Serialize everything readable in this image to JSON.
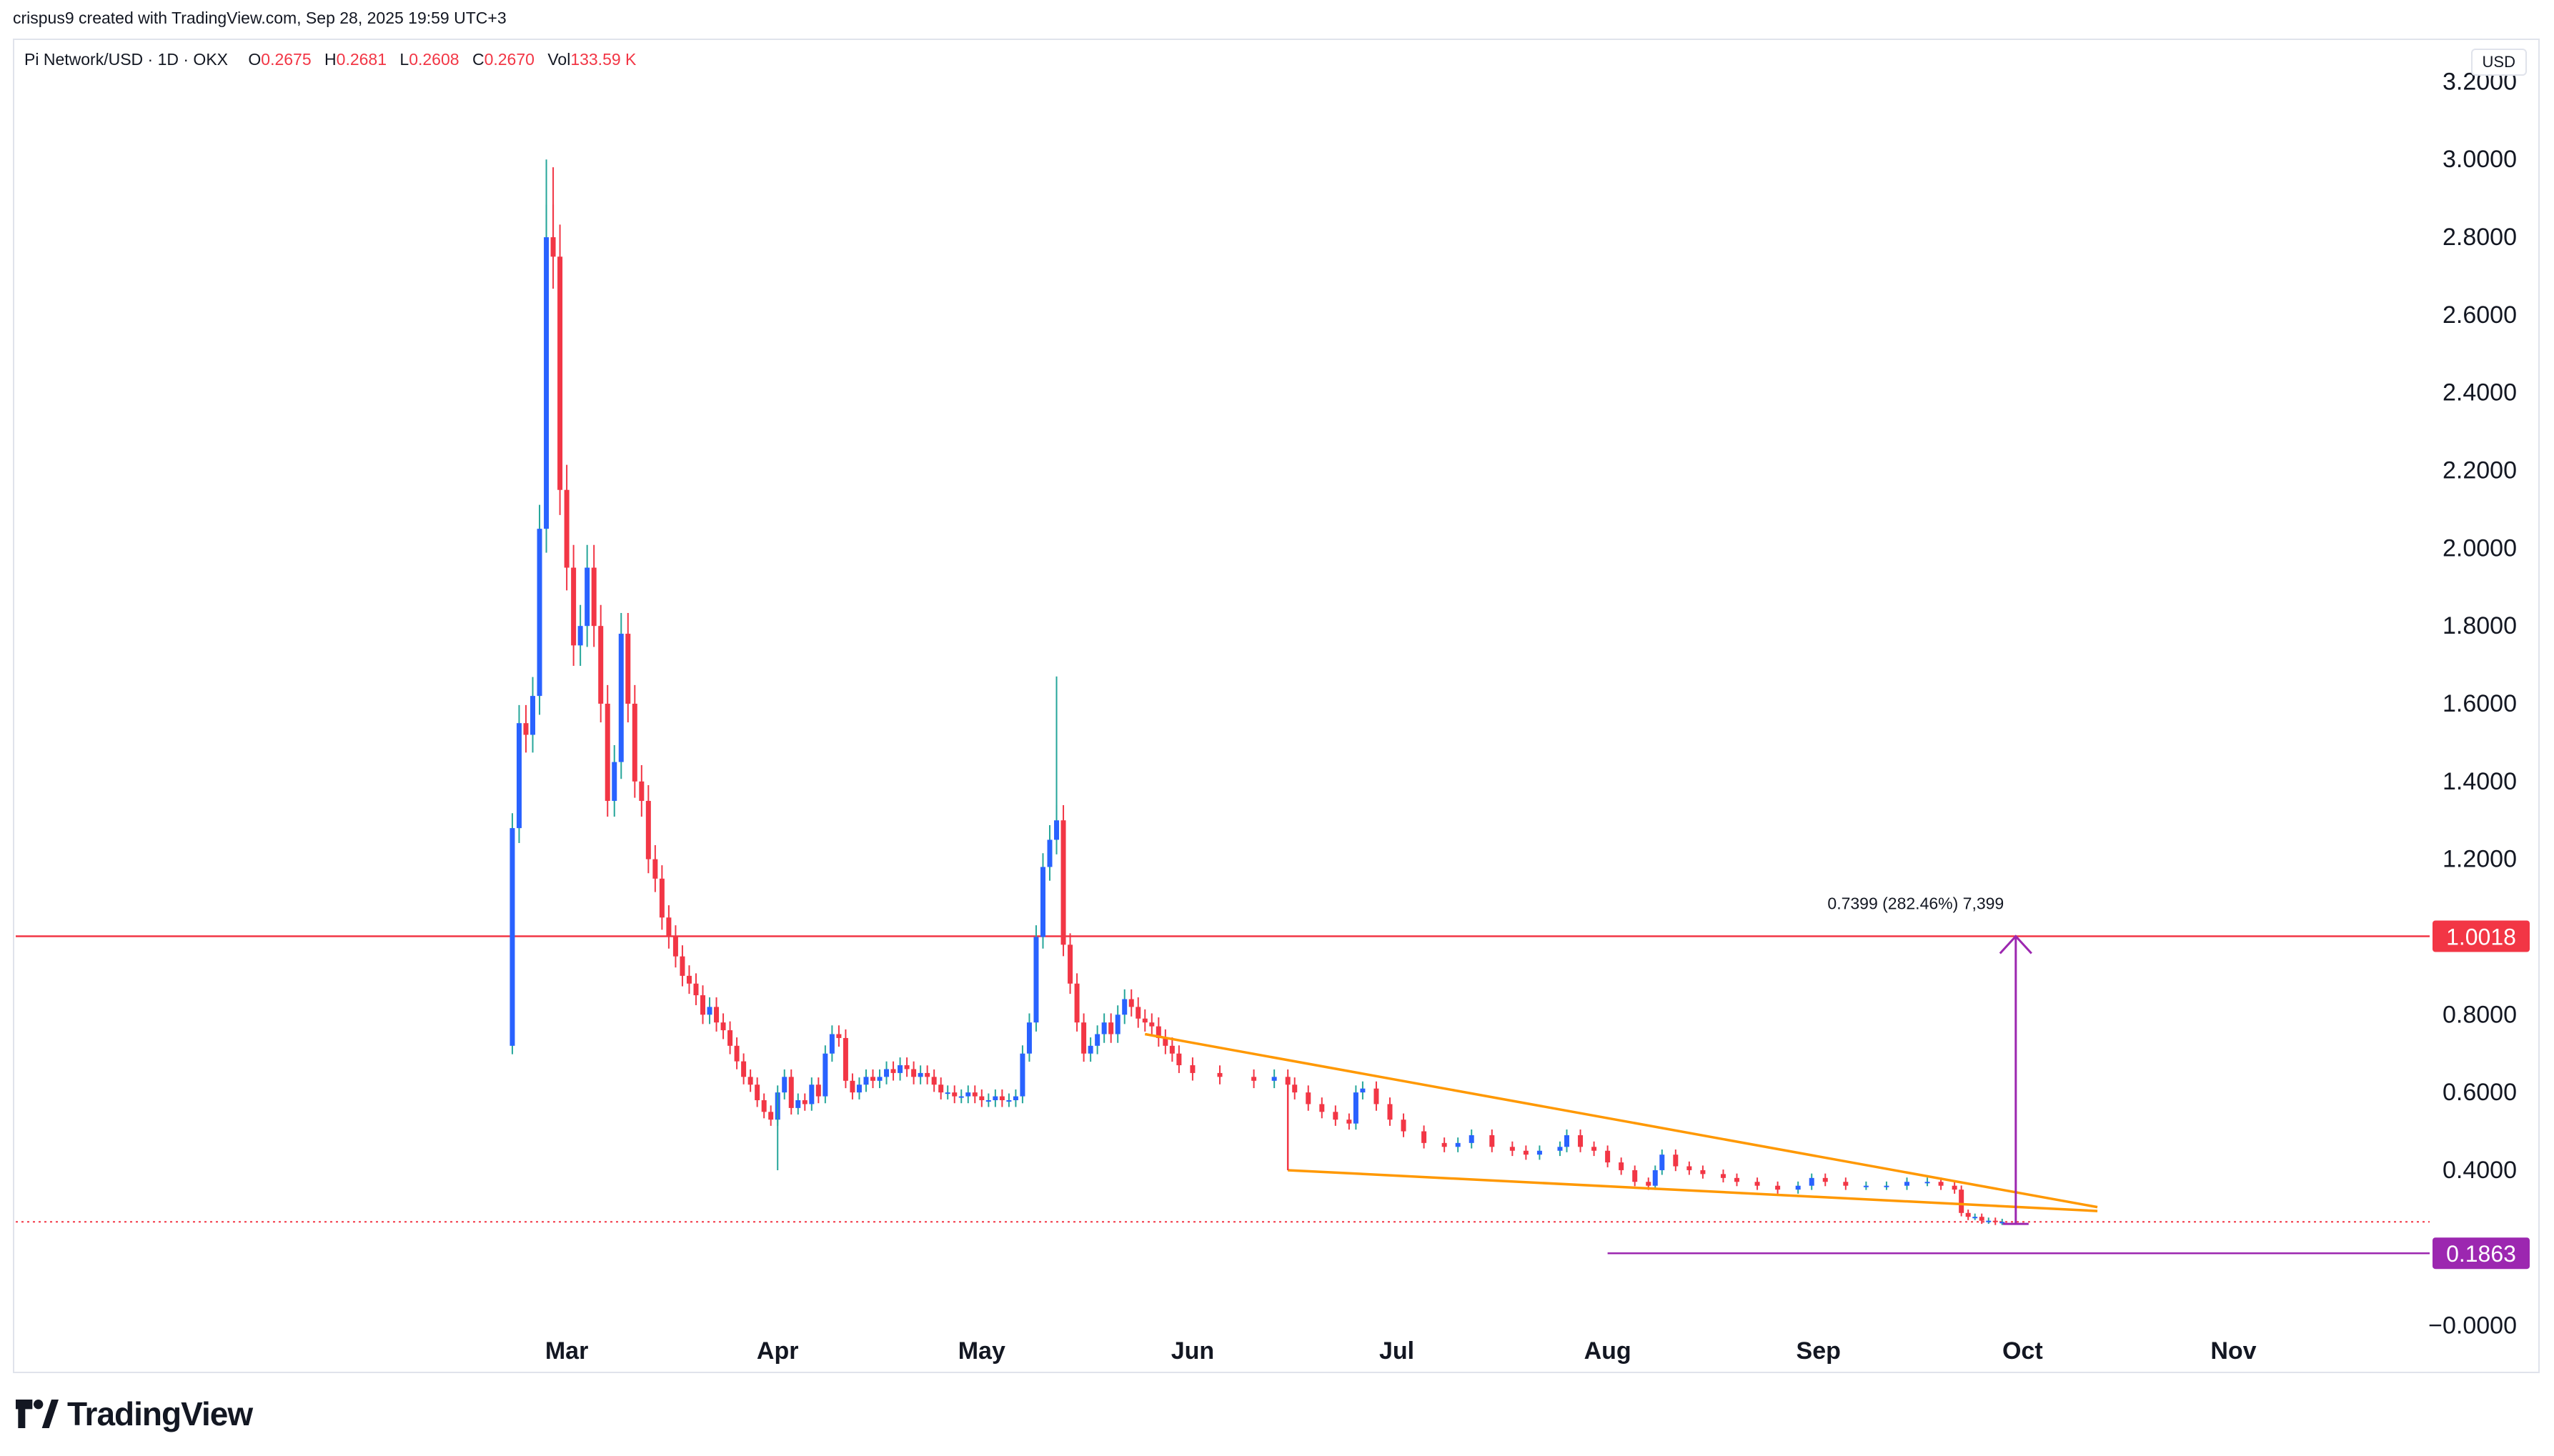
{
  "header": {
    "credit": "crispus9 created with TradingView.com, Sep 28, 2025 19:59 UTC+3"
  },
  "legend": {
    "symbol": "Pi Network/USD · 1D · OKX",
    "o_label": "O",
    "o": "0.2675",
    "h_label": "H",
    "h": "0.2681",
    "l_label": "L",
    "l": "0.2608",
    "c_label": "C",
    "c": "0.2670",
    "vol_label": "Vol",
    "vol": "133.59 K"
  },
  "currency_button": "USD",
  "brand": {
    "name": "TradingView",
    "logo_icon": "tradingview-logo-icon"
  },
  "colors": {
    "up": "#26a69a",
    "down": "#f23645",
    "up_body": "#2962ff",
    "pattern": "#ff9800",
    "target": "#9c27b0",
    "resistance": "#f23645",
    "current": "#f23645"
  },
  "chart_data": {
    "type": "candlestick",
    "y_axis": {
      "ticks": [
        "3.2000",
        "3.0000",
        "2.8000",
        "2.6000",
        "2.4000",
        "2.2000",
        "2.0000",
        "1.8000",
        "1.6000",
        "1.4000",
        "1.2000",
        "1.0000",
        "0.8000",
        "0.6000",
        "0.4000",
        "−0.0000"
      ],
      "tick_values": [
        3.2,
        3.0,
        2.8,
        2.6,
        2.4,
        2.2,
        2.0,
        1.8,
        1.6,
        1.4,
        1.2,
        1.0,
        0.8,
        0.6,
        0.4,
        0.0
      ],
      "range": [
        -0.1,
        3.3
      ]
    },
    "x_axis": {
      "labels": [
        "Mar",
        "Apr",
        "May",
        "Jun",
        "Jul",
        "Aug",
        "Sep",
        "Oct",
        "Nov"
      ],
      "label_dates": [
        "2025-03-01",
        "2025-04-01",
        "2025-05-01",
        "2025-06-01",
        "2025-07-01",
        "2025-08-01",
        "2025-09-01",
        "2025-10-01",
        "2025-11-01"
      ],
      "range": [
        "2024-12-10",
        "2025-11-29"
      ]
    },
    "series_points": [
      [
        "2025-02-20",
        0.72
      ],
      [
        "2025-02-21",
        1.28
      ],
      [
        "2025-02-22",
        1.55
      ],
      [
        "2025-02-23",
        1.52
      ],
      [
        "2025-02-24",
        1.62
      ],
      [
        "2025-02-25",
        2.05
      ],
      [
        "2025-02-26",
        2.8
      ],
      [
        "2025-02-27",
        2.75
      ],
      [
        "2025-02-28",
        2.15
      ],
      [
        "2025-03-01",
        1.95
      ],
      [
        "2025-03-02",
        1.75
      ],
      [
        "2025-03-03",
        1.8
      ],
      [
        "2025-03-04",
        1.95
      ],
      [
        "2025-03-05",
        1.8
      ],
      [
        "2025-03-06",
        1.6
      ],
      [
        "2025-03-07",
        1.35
      ],
      [
        "2025-03-08",
        1.45
      ],
      [
        "2025-03-09",
        1.78
      ],
      [
        "2025-03-10",
        1.6
      ],
      [
        "2025-03-11",
        1.4
      ],
      [
        "2025-03-12",
        1.35
      ],
      [
        "2025-03-13",
        1.2
      ],
      [
        "2025-03-14",
        1.15
      ],
      [
        "2025-03-15",
        1.05
      ],
      [
        "2025-03-16",
        1.0
      ],
      [
        "2025-03-17",
        0.95
      ],
      [
        "2025-03-18",
        0.9
      ],
      [
        "2025-03-19",
        0.88
      ],
      [
        "2025-03-20",
        0.85
      ],
      [
        "2025-03-21",
        0.8
      ],
      [
        "2025-03-22",
        0.82
      ],
      [
        "2025-03-23",
        0.78
      ],
      [
        "2025-03-24",
        0.76
      ],
      [
        "2025-03-25",
        0.72
      ],
      [
        "2025-03-26",
        0.68
      ],
      [
        "2025-03-27",
        0.64
      ],
      [
        "2025-03-28",
        0.62
      ],
      [
        "2025-03-29",
        0.58
      ],
      [
        "2025-03-30",
        0.55
      ],
      [
        "2025-03-31",
        0.53
      ],
      [
        "2025-04-01",
        0.6
      ],
      [
        "2025-04-02",
        0.64
      ],
      [
        "2025-04-03",
        0.56
      ],
      [
        "2025-04-04",
        0.58
      ],
      [
        "2025-04-05",
        0.57
      ],
      [
        "2025-04-06",
        0.62
      ],
      [
        "2025-04-07",
        0.59
      ],
      [
        "2025-04-08",
        0.7
      ],
      [
        "2025-04-09",
        0.75
      ],
      [
        "2025-04-10",
        0.74
      ],
      [
        "2025-04-11",
        0.63
      ],
      [
        "2025-04-12",
        0.6
      ],
      [
        "2025-04-13",
        0.62
      ],
      [
        "2025-04-14",
        0.64
      ],
      [
        "2025-04-15",
        0.63
      ],
      [
        "2025-04-16",
        0.64
      ],
      [
        "2025-04-17",
        0.66
      ],
      [
        "2025-04-18",
        0.65
      ],
      [
        "2025-04-19",
        0.67
      ],
      [
        "2025-04-20",
        0.66
      ],
      [
        "2025-04-21",
        0.64
      ],
      [
        "2025-04-22",
        0.65
      ],
      [
        "2025-04-23",
        0.64
      ],
      [
        "2025-04-24",
        0.62
      ],
      [
        "2025-04-25",
        0.6
      ],
      [
        "2025-04-26",
        0.6
      ],
      [
        "2025-04-27",
        0.59
      ],
      [
        "2025-04-28",
        0.59
      ],
      [
        "2025-04-29",
        0.6
      ],
      [
        "2025-04-30",
        0.59
      ],
      [
        "2025-05-01",
        0.58
      ],
      [
        "2025-05-02",
        0.58
      ],
      [
        "2025-05-03",
        0.59
      ],
      [
        "2025-05-04",
        0.58
      ],
      [
        "2025-05-05",
        0.58
      ],
      [
        "2025-05-06",
        0.59
      ],
      [
        "2025-05-07",
        0.7
      ],
      [
        "2025-05-08",
        0.78
      ],
      [
        "2025-05-09",
        1.0
      ],
      [
        "2025-05-10",
        1.18
      ],
      [
        "2025-05-11",
        1.25
      ],
      [
        "2025-05-12",
        1.3
      ],
      [
        "2025-05-13",
        0.98
      ],
      [
        "2025-05-14",
        0.88
      ],
      [
        "2025-05-15",
        0.78
      ],
      [
        "2025-05-16",
        0.7
      ],
      [
        "2025-05-17",
        0.72
      ],
      [
        "2025-05-18",
        0.75
      ],
      [
        "2025-05-19",
        0.78
      ],
      [
        "2025-05-20",
        0.75
      ],
      [
        "2025-05-21",
        0.8
      ],
      [
        "2025-05-22",
        0.84
      ],
      [
        "2025-05-23",
        0.82
      ],
      [
        "2025-05-24",
        0.79
      ],
      [
        "2025-05-25",
        0.78
      ],
      [
        "2025-05-26",
        0.77
      ],
      [
        "2025-05-27",
        0.74
      ],
      [
        "2025-05-28",
        0.72
      ],
      [
        "2025-05-29",
        0.7
      ],
      [
        "2025-05-30",
        0.67
      ],
      [
        "2025-06-01",
        0.65
      ],
      [
        "2025-06-05",
        0.64
      ],
      [
        "2025-06-10",
        0.63
      ],
      [
        "2025-06-13",
        0.64
      ],
      [
        "2025-06-15",
        0.62
      ],
      [
        "2025-06-16",
        0.6
      ],
      [
        "2025-06-18",
        0.57
      ],
      [
        "2025-06-20",
        0.55
      ],
      [
        "2025-06-22",
        0.53
      ],
      [
        "2025-06-24",
        0.52
      ],
      [
        "2025-06-25",
        0.6
      ],
      [
        "2025-06-26",
        0.61
      ],
      [
        "2025-06-28",
        0.57
      ],
      [
        "2025-06-30",
        0.53
      ],
      [
        "2025-07-02",
        0.5
      ],
      [
        "2025-07-05",
        0.47
      ],
      [
        "2025-07-08",
        0.46
      ],
      [
        "2025-07-10",
        0.47
      ],
      [
        "2025-07-12",
        0.49
      ],
      [
        "2025-07-15",
        0.46
      ],
      [
        "2025-07-18",
        0.45
      ],
      [
        "2025-07-20",
        0.44
      ],
      [
        "2025-07-22",
        0.45
      ],
      [
        "2025-07-25",
        0.46
      ],
      [
        "2025-07-26",
        0.49
      ],
      [
        "2025-07-28",
        0.46
      ],
      [
        "2025-07-30",
        0.45
      ],
      [
        "2025-08-01",
        0.42
      ],
      [
        "2025-08-03",
        0.4
      ],
      [
        "2025-08-05",
        0.37
      ],
      [
        "2025-08-07",
        0.36
      ],
      [
        "2025-08-08",
        0.4
      ],
      [
        "2025-08-09",
        0.44
      ],
      [
        "2025-08-11",
        0.41
      ],
      [
        "2025-08-13",
        0.4
      ],
      [
        "2025-08-15",
        0.39
      ],
      [
        "2025-08-18",
        0.38
      ],
      [
        "2025-08-20",
        0.37
      ],
      [
        "2025-08-23",
        0.36
      ],
      [
        "2025-08-26",
        0.35
      ],
      [
        "2025-08-29",
        0.36
      ],
      [
        "2025-08-31",
        0.38
      ],
      [
        "2025-09-02",
        0.37
      ],
      [
        "2025-09-05",
        0.36
      ],
      [
        "2025-09-08",
        0.36
      ],
      [
        "2025-09-11",
        0.36
      ],
      [
        "2025-09-14",
        0.37
      ],
      [
        "2025-09-17",
        0.37
      ],
      [
        "2025-09-19",
        0.36
      ],
      [
        "2025-09-21",
        0.35
      ],
      [
        "2025-09-22",
        0.29
      ],
      [
        "2025-09-23",
        0.28
      ],
      [
        "2025-09-24",
        0.28
      ],
      [
        "2025-09-25",
        0.27
      ],
      [
        "2025-09-26",
        0.27
      ],
      [
        "2025-09-27",
        0.267
      ],
      [
        "2025-09-28",
        0.267
      ]
    ],
    "spikes": [
      {
        "date": "2025-02-26",
        "high": 3.0,
        "color": "up"
      },
      {
        "date": "2025-02-27",
        "high": 2.98,
        "color": "down"
      },
      {
        "date": "2025-05-12",
        "high": 1.67,
        "color": "up"
      },
      {
        "date": "2025-04-01",
        "low": 0.4,
        "color": "up"
      }
    ],
    "annotations": {
      "resistance": {
        "value": 1.0018,
        "label": "1.0018"
      },
      "support": {
        "value": 0.1863,
        "label": "0.1863",
        "from_date": "2025-08-01"
      },
      "current_price": {
        "value": 0.267
      },
      "wedge_upper": [
        [
          "2025-05-25",
          0.75
        ],
        [
          "2025-10-12",
          0.305
        ]
      ],
      "wedge_lower": [
        [
          "2025-06-15",
          0.4
        ],
        [
          "2025-10-12",
          0.295
        ]
      ],
      "drop_marker": {
        "date": "2025-06-15",
        "from": 0.64,
        "to": 0.4
      },
      "target_arrow": {
        "date": "2025-09-30",
        "from": 0.2619,
        "to": 1.0018
      },
      "target_label": "0.7399 (282.46%) 7,399"
    }
  }
}
